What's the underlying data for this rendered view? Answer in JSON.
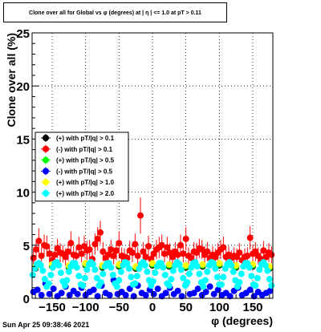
{
  "chart_data": {
    "type": "scatter",
    "title": "Clone  over all for Global vs φ (degrees) at | η | <= 1.0 at pT > 0.11",
    "xlabel": "φ (degrees)",
    "ylabel": "Clone  over all (%)",
    "xlim": [
      -180,
      180
    ],
    "ylim": [
      0,
      25
    ],
    "x_ticks": [
      -150,
      -100,
      -50,
      0,
      50,
      100,
      150
    ],
    "x_tick_labels": [
      "−150",
      "−100",
      "−50",
      "0",
      "50",
      "100",
      "150"
    ],
    "y_ticks": [
      0,
      5,
      10,
      15,
      20,
      25
    ],
    "y_tick_labels": [
      "0",
      "5",
      "10",
      "15",
      "20",
      "25"
    ],
    "grid": true,
    "legend_position": "middle-left",
    "series": [
      {
        "name": "(+) with pT/|q| > 0.1",
        "color": "#000000",
        "x": [
          -175,
          -150,
          -125,
          -100,
          -75,
          -50,
          -25,
          0,
          25,
          50,
          75,
          100,
          125,
          150,
          175
        ],
        "y": [
          2.8,
          3.0,
          2.9,
          3.1,
          2.9,
          3.0,
          2.8,
          3.1,
          3.0,
          2.9,
          3.0,
          3.1,
          2.9,
          3.0,
          2.8
        ]
      },
      {
        "name": "(-) with pT/|q| > 0.1",
        "color": "#ff0000",
        "x": [
          -178,
          -174,
          -170,
          -166,
          -162,
          -158,
          -154,
          -150,
          -146,
          -142,
          -138,
          -134,
          -130,
          -126,
          -122,
          -118,
          -114,
          -110,
          -106,
          -102,
          -98,
          -94,
          -90,
          -86,
          -82,
          -78,
          -74,
          -70,
          -66,
          -62,
          -58,
          -54,
          -50,
          -46,
          -42,
          -38,
          -34,
          -30,
          -26,
          -22,
          -18,
          -14,
          -10,
          -6,
          -2,
          2,
          6,
          10,
          14,
          18,
          22,
          26,
          30,
          34,
          38,
          42,
          46,
          50,
          54,
          58,
          62,
          66,
          70,
          74,
          78,
          82,
          86,
          90,
          94,
          98,
          102,
          106,
          110,
          114,
          118,
          122,
          126,
          130,
          134,
          138,
          142,
          146,
          150,
          154,
          158,
          162,
          166,
          170,
          174,
          178
        ],
        "y": [
          3.8,
          4.6,
          5.4,
          4.0,
          5.0,
          4.9,
          4.2,
          3.6,
          4.1,
          4.7,
          4.3,
          4.2,
          3.9,
          4.4,
          5.2,
          4.1,
          4.0,
          4.8,
          4.2,
          4.9,
          4.5,
          4.6,
          3.7,
          5.1,
          5.6,
          6.2,
          4.4,
          3.8,
          4.1,
          4.6,
          4.0,
          4.5,
          5.2,
          4.0,
          3.9,
          3.8,
          4.5,
          4.3,
          5.1,
          4.0,
          7.8,
          4.4,
          3.9,
          4.9,
          3.7,
          4.2,
          4.6,
          4.8,
          5.0,
          4.2,
          4.8,
          4.3,
          3.9,
          4.4,
          4.1,
          5.0,
          4.2,
          5.6,
          4.0,
          3.8,
          4.4,
          4.3,
          4.7,
          4.6,
          4.1,
          4.4,
          3.8,
          4.1,
          3.9,
          4.3,
          4.6,
          4.8,
          3.9,
          4.1,
          3.8,
          4.0,
          3.9,
          4.3,
          3.6,
          3.9,
          4.0,
          5.7,
          4.2,
          4.4,
          4.0,
          3.7,
          4.5,
          3.9,
          4.3,
          4.1
        ],
        "yerr": [
          0.7,
          0.9,
          1.2,
          0.8,
          1.0,
          1.0,
          0.8,
          0.7,
          0.8,
          0.9,
          0.9,
          0.8,
          0.8,
          0.9,
          1.1,
          0.8,
          0.8,
          1.0,
          0.8,
          1.0,
          0.9,
          0.9,
          0.7,
          1.0,
          1.1,
          1.1,
          0.9,
          0.7,
          0.8,
          0.9,
          0.8,
          0.9,
          1.1,
          0.8,
          0.8,
          0.7,
          0.9,
          0.9,
          1.0,
          0.8,
          1.7,
          0.9,
          0.8,
          1.0,
          0.7,
          0.8,
          0.9,
          1.0,
          1.0,
          0.8,
          1.0,
          0.9,
          0.8,
          0.9,
          0.8,
          1.0,
          0.8,
          1.1,
          0.8,
          0.7,
          0.9,
          0.9,
          0.9,
          0.9,
          0.8,
          0.9,
          0.7,
          0.8,
          0.8,
          0.9,
          0.9,
          1.0,
          0.8,
          0.8,
          0.7,
          0.8,
          0.8,
          0.9,
          0.7,
          0.8,
          0.8,
          1.1,
          0.8,
          0.9,
          0.8,
          0.7,
          0.9,
          0.8,
          0.9,
          0.8
        ]
      },
      {
        "name": "(+) with pT/|q| > 0.5",
        "color": "#00ff00",
        "x": [
          -175,
          -150,
          -125,
          -100,
          -75,
          -50,
          -25,
          0,
          25,
          50,
          75,
          100,
          125,
          150,
          175
        ],
        "y": [
          2.9,
          3.1,
          3.0,
          3.2,
          3.0,
          3.1,
          2.9,
          3.2,
          3.1,
          3.0,
          3.1,
          3.2,
          3.0,
          3.1,
          2.9
        ]
      },
      {
        "name": "(-) with pT/|q| > 0.5",
        "color": "#0000ff",
        "x": [
          -178,
          -172,
          -166,
          -160,
          -154,
          -148,
          -142,
          -136,
          -130,
          -124,
          -118,
          -112,
          -106,
          -100,
          -94,
          -88,
          -82,
          -76,
          -70,
          -64,
          -58,
          -52,
          -46,
          -40,
          -34,
          -28,
          -22,
          -16,
          -10,
          -4,
          2,
          8,
          14,
          20,
          26,
          32,
          38,
          44,
          50,
          56,
          62,
          68,
          74,
          80,
          86,
          92,
          98,
          104,
          110,
          116,
          122,
          128,
          134,
          140,
          146,
          152,
          158,
          164,
          170,
          176
        ],
        "y": [
          0.6,
          0.8,
          0.3,
          1.4,
          0.4,
          0.9,
          0.2,
          0.5,
          1.1,
          0.3,
          0.7,
          0.4,
          1.0,
          0.3,
          0.6,
          0.8,
          0.2,
          1.2,
          0.5,
          0.3,
          1.7,
          0.4,
          0.6,
          0.3,
          0.9,
          0.2,
          1.2,
          0.5,
          0.3,
          0.8,
          0.4,
          0.9,
          0.2,
          0.5,
          1.0,
          0.4,
          0.7,
          0.2,
          1.3,
          0.4,
          0.5,
          0.9,
          0.3,
          0.6,
          1.1,
          0.4,
          0.8,
          0.3,
          0.5,
          0.2,
          0.7,
          1.0,
          0.3,
          0.5,
          0.8,
          0.2,
          0.6,
          0.3,
          0.5,
          0.7
        ]
      },
      {
        "name": "(+) with pT/|q| > 1.0",
        "color": "#ffff00",
        "x": [
          -175,
          -150,
          -125,
          -100,
          -75,
          -50,
          -25,
          0,
          25,
          50,
          75,
          100,
          125,
          150,
          175
        ],
        "y": [
          3.0,
          3.2,
          3.1,
          3.3,
          3.1,
          3.2,
          3.0,
          3.3,
          3.2,
          3.1,
          3.2,
          3.3,
          3.1,
          3.2,
          3.0
        ]
      },
      {
        "name": "(+) with pT/|q| > 2.0",
        "color": "#00ffff",
        "x": [
          -179,
          -176,
          -173,
          -170,
          -167,
          -164,
          -161,
          -158,
          -155,
          -152,
          -149,
          -146,
          -143,
          -140,
          -137,
          -134,
          -131,
          -128,
          -125,
          -122,
          -119,
          -116,
          -113,
          -110,
          -107,
          -104,
          -101,
          -98,
          -95,
          -92,
          -89,
          -86,
          -83,
          -80,
          -77,
          -74,
          -71,
          -68,
          -65,
          -62,
          -59,
          -56,
          -53,
          -50,
          -47,
          -44,
          -41,
          -38,
          -35,
          -32,
          -29,
          -26,
          -23,
          -20,
          -17,
          -14,
          -11,
          -8,
          -5,
          -2,
          1,
          4,
          7,
          10,
          13,
          16,
          19,
          22,
          25,
          28,
          31,
          34,
          37,
          40,
          43,
          46,
          49,
          52,
          55,
          58,
          61,
          64,
          67,
          70,
          73,
          76,
          79,
          82,
          85,
          88,
          91,
          94,
          97,
          100,
          103,
          106,
          109,
          112,
          115,
          118,
          121,
          124,
          127,
          130,
          133,
          136,
          139,
          142,
          145,
          148,
          151,
          154,
          157,
          160,
          163,
          166,
          169,
          172,
          175,
          178
        ],
        "y": [
          2.2,
          2.8,
          3.2,
          3.3,
          3.1,
          2.6,
          1.8,
          1.1,
          1.4,
          2.2,
          2.9,
          3.3,
          3.4,
          3.1,
          2.4,
          1.6,
          1.2,
          1.7,
          2.5,
          3.0,
          3.3,
          3.3,
          2.9,
          2.1,
          1.3,
          1.2,
          1.9,
          2.7,
          3.2,
          3.4,
          3.2,
          2.7,
          1.9,
          1.2,
          1.5,
          2.3,
          3.0,
          3.3,
          3.3,
          2.9,
          2.2,
          1.4,
          1.1,
          1.7,
          2.5,
          3.1,
          3.4,
          3.3,
          2.8,
          2.0,
          1.3,
          1.4,
          2.1,
          2.8,
          3.2,
          3.4,
          3.1,
          2.5,
          1.7,
          1.2,
          1.6,
          2.4,
          3.0,
          3.3,
          3.3,
          2.9,
          2.2,
          1.4,
          1.2,
          1.8,
          2.6,
          3.1,
          3.4,
          3.2,
          2.7,
          1.9,
          1.2,
          1.5,
          2.3,
          2.9,
          3.3,
          3.4,
          3.0,
          2.3,
          1.5,
          1.1,
          1.7,
          2.5,
          3.1,
          3.4,
          3.3,
          2.8,
          2.0,
          1.3,
          1.3,
          2.0,
          2.8,
          3.2,
          3.4,
          3.1,
          2.5,
          1.7,
          1.1,
          1.5,
          2.3,
          3.0,
          3.3,
          3.3,
          2.9,
          2.1,
          1.3,
          1.2,
          1.9,
          2.7,
          3.2,
          3.4,
          3.1,
          2.6,
          1.8,
          1.2
        ]
      }
    ]
  },
  "footer_timestamp": "Sun Apr 25 09:38:46 2021"
}
